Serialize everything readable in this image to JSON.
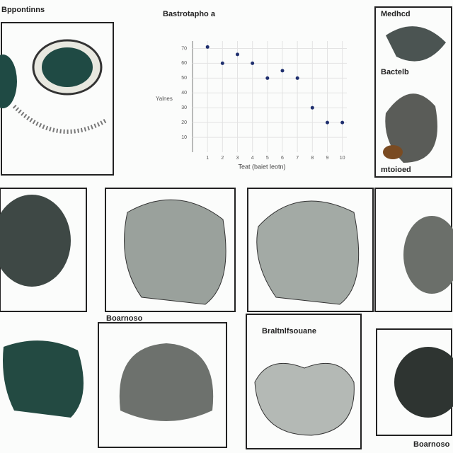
{
  "header": {
    "title": "Bppontinns"
  },
  "chart": {
    "type": "scatter",
    "title": "Bastrotapho a",
    "x_label": "Teat (baiet leotn)",
    "y_label": "Yalnes",
    "x": [
      1,
      2,
      3,
      4,
      5,
      6,
      7,
      8,
      9,
      10
    ],
    "values": [
      71,
      60,
      66,
      60,
      50,
      55,
      50,
      30,
      20,
      20
    ],
    "color": "#1f2f6e",
    "xlim": [
      0,
      10.3
    ],
    "xticks": [
      1,
      2,
      3,
      4,
      5,
      6,
      7,
      8,
      9,
      10
    ],
    "ylim": [
      0,
      75
    ],
    "yticks": [
      10,
      20,
      30,
      40,
      50,
      60,
      70
    ],
    "grid": true
  },
  "panels": {
    "top_right_top": "Medhcd",
    "top_right_mid": "Bactelb",
    "top_right_bottom": "mtoioed",
    "row3_left": "Boarnoso",
    "row3_mid": "Braltnlfsouane",
    "row3_right": "Boarnoso"
  }
}
